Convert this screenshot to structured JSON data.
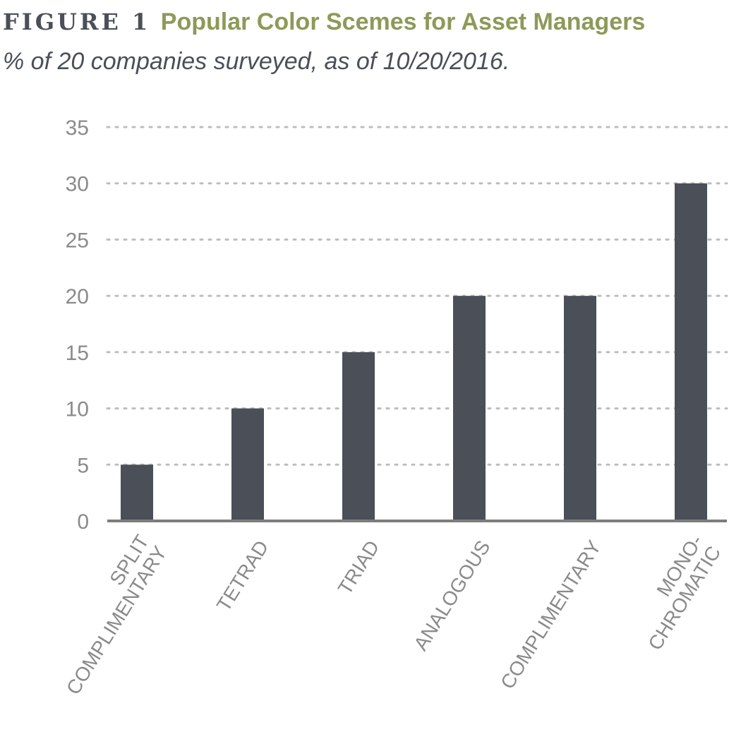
{
  "header": {
    "figure_label": "FIGURE 1",
    "title": "Popular Color Scemes for Asset Managers",
    "subtitle": "% of 20 companies surveyed, as of 10/20/2016."
  },
  "colors": {
    "bar": "#4a4f58",
    "title_accent": "#8c9a58",
    "grid": "#bdbdbd",
    "axis": "#7d7d7d",
    "tick_text": "#8a8a8a"
  },
  "chart_data": {
    "type": "bar",
    "title": "Popular Color Scemes for Asset Managers",
    "subtitle": "% of 20 companies surveyed, as of 10/20/2016.",
    "categories": [
      [
        "SPLIT",
        "COMPLIMENTARY"
      ],
      [
        "TETRAD"
      ],
      [
        "TRIAD"
      ],
      [
        "ANALOGOUS"
      ],
      [
        "COMPLIMENTARY"
      ],
      [
        "MONO-",
        "CHROMATIC"
      ]
    ],
    "values": [
      5,
      10,
      15,
      20,
      20,
      30
    ],
    "ylim": [
      0,
      35
    ],
    "yticks": [
      0,
      5,
      10,
      15,
      20,
      25,
      30,
      35
    ],
    "xlabel": "",
    "ylabel": "",
    "grid": "horizontal-dotted",
    "legend": "none"
  }
}
